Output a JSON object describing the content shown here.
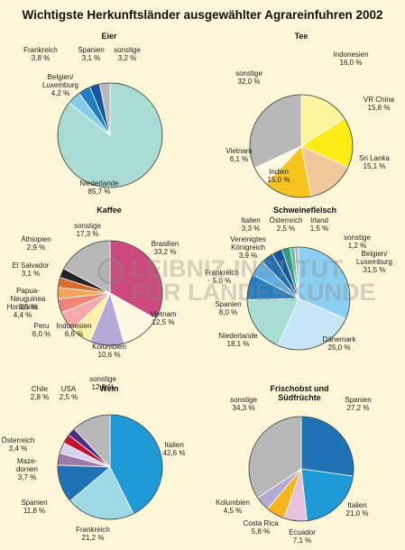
{
  "title": "Wichtigste Herkunftsländer ausgewählter Agrareinfuhren 2002",
  "watermark": {
    "line1": "LEIBNIZ-INSTITUT",
    "line2": "FÜR LÄNDERKUNDE",
    "symbol": "©"
  },
  "chart_data": [
    {
      "type": "pie",
      "title": "Eier",
      "slices": [
        {
          "label": "Niederlande",
          "value": 85.7,
          "display": "85,7 %",
          "color": "#a9dcd2"
        },
        {
          "label": "Belgien/ Luxemburg",
          "value": 4.2,
          "display": "4,2 %",
          "color": "#83ccee"
        },
        {
          "label": "Frankreich",
          "value": 3.8,
          "display": "3,8 %",
          "color": "#1f7fc1"
        },
        {
          "label": "Spanien",
          "value": 3.1,
          "display": "3,1 %",
          "color": "#1457a0"
        },
        {
          "label": "sonstige",
          "value": 3.2,
          "display": "3,2 %",
          "color": "#b8b8b8"
        }
      ]
    },
    {
      "type": "pie",
      "title": "Tee",
      "slices": [
        {
          "label": "Indonesien",
          "value": 16.0,
          "display": "16,0 %",
          "color": "#fdf49e"
        },
        {
          "label": "VR China",
          "value": 15.8,
          "display": "15,8 %",
          "color": "#fbec18"
        },
        {
          "label": "Sri Lanka",
          "value": 15.1,
          "display": "15,1 %",
          "color": "#f1c899"
        },
        {
          "label": "Indien",
          "value": 15.0,
          "display": "15,0 %",
          "color": "#f6c41c"
        },
        {
          "label": "Vietnam",
          "value": 6.1,
          "display": "6,1 %",
          "color": "#fffbe3"
        },
        {
          "label": "sonstige",
          "value": 32.0,
          "display": "32,0 %",
          "color": "#b8b8b8"
        }
      ]
    },
    {
      "type": "pie",
      "title": "Kaffee",
      "slices": [
        {
          "label": "Brasilien",
          "value": 33.2,
          "display": "33,2 %",
          "color": "#cc4a7d"
        },
        {
          "label": "Vietnam",
          "value": 12.5,
          "display": "12,5 %",
          "color": "#fef8e2"
        },
        {
          "label": "Kolumbien",
          "value": 10.6,
          "display": "10,6 %",
          "color": "#b4aad6"
        },
        {
          "label": "Indonesien",
          "value": 6.6,
          "display": "6,6 %",
          "color": "#fdf2a8"
        },
        {
          "label": "Peru",
          "value": 6.0,
          "display": "6,0 %",
          "color": "#f6a9a8"
        },
        {
          "label": "Honduras",
          "value": 4.4,
          "display": "4,4 %",
          "color": "#ef8577"
        },
        {
          "label": "Papua-Neuguinea",
          "value": 3.5,
          "display": "3,5 %",
          "color": "#f2a65a"
        },
        {
          "label": "El Salvador",
          "value": 3.1,
          "display": "3,1 %",
          "color": "#d86b2e"
        },
        {
          "label": "Äthiopien",
          "value": 2.9,
          "display": "2,9 %",
          "color": "#222222"
        },
        {
          "label": "sonstige",
          "value": 17.3,
          "display": "17,3 %",
          "color": "#b8b8b8"
        }
      ]
    },
    {
      "type": "pie",
      "title": "Schweinefleisch",
      "slices": [
        {
          "label": "Belgien/ Luxemburg",
          "value": 31.5,
          "display": "31,5 %",
          "color": "#8cd0f1"
        },
        {
          "label": "Dänemark",
          "value": 25.0,
          "display": "25,0 %",
          "color": "#c6e6f6"
        },
        {
          "label": "Niederlande",
          "value": 18.1,
          "display": "18,1 %",
          "color": "#a9dcd2"
        },
        {
          "label": "Spanien",
          "value": 8.0,
          "display": "8,0 %",
          "color": "#1f7fc1"
        },
        {
          "label": "Frankreich",
          "value": 5.0,
          "display": "5,0 %",
          "color": "#5fb0e6"
        },
        {
          "label": "Vereinigtes Königreich",
          "value": 3.9,
          "display": "3,9 %",
          "color": "#1d6fb0"
        },
        {
          "label": "Italien",
          "value": 3.3,
          "display": "3,3 %",
          "color": "#1457a0"
        },
        {
          "label": "Österreich",
          "value": 2.5,
          "display": "2,5 %",
          "color": "#2d9f7f"
        },
        {
          "label": "Irland",
          "value": 1.5,
          "display": "1,5 %",
          "color": "#6bc3a6"
        },
        {
          "label": "sonstige",
          "value": 1.2,
          "display": "1,2 %",
          "color": "#b8b8b8"
        }
      ]
    },
    {
      "type": "pie",
      "title": "Wein",
      "slices": [
        {
          "label": "Italien",
          "value": 42.6,
          "display": "42,6 %",
          "color": "#1e9ad6"
        },
        {
          "label": "Frankreich",
          "value": 21.2,
          "display": "21,2 %",
          "color": "#9fd9e6"
        },
        {
          "label": "Spanien",
          "value": 11.8,
          "display": "11,8 %",
          "color": "#1f72b5"
        },
        {
          "label": "Mazedonien",
          "value": 3.7,
          "display": "3,7 %",
          "color": "#a07aa8"
        },
        {
          "label": "Österreich",
          "value": 3.4,
          "display": "3,4 %",
          "color": "#d9d1ee"
        },
        {
          "label": "Chile",
          "value": 2.8,
          "display": "2,8 %",
          "color": "#c8102e"
        },
        {
          "label": "USA",
          "value": 2.5,
          "display": "2,5 %",
          "color": "#4a2d82"
        },
        {
          "label": "sonstige",
          "value": 12.0,
          "display": "12,0 %",
          "color": "#b8b8b8"
        }
      ]
    },
    {
      "type": "pie",
      "title": "Frischobst und Südfrüchte",
      "slices": [
        {
          "label": "Spanien",
          "value": 27.2,
          "display": "27,2 %",
          "color": "#1f72b5"
        },
        {
          "label": "Italien",
          "value": 21.0,
          "display": "21,0 %",
          "color": "#1e9ad6"
        },
        {
          "label": "Ecuador",
          "value": 7.1,
          "display": "7,1 %",
          "color": "#e5c3dc"
        },
        {
          "label": "Costa Rica",
          "value": 5.8,
          "display": "5,8 %",
          "color": "#f6b51d"
        },
        {
          "label": "Kolumbien",
          "value": 4.5,
          "display": "4,5 %",
          "color": "#b4aad6"
        },
        {
          "label": "sonstige",
          "value": 34.3,
          "display": "34,3 %",
          "color": "#b8b8b8"
        }
      ]
    }
  ]
}
